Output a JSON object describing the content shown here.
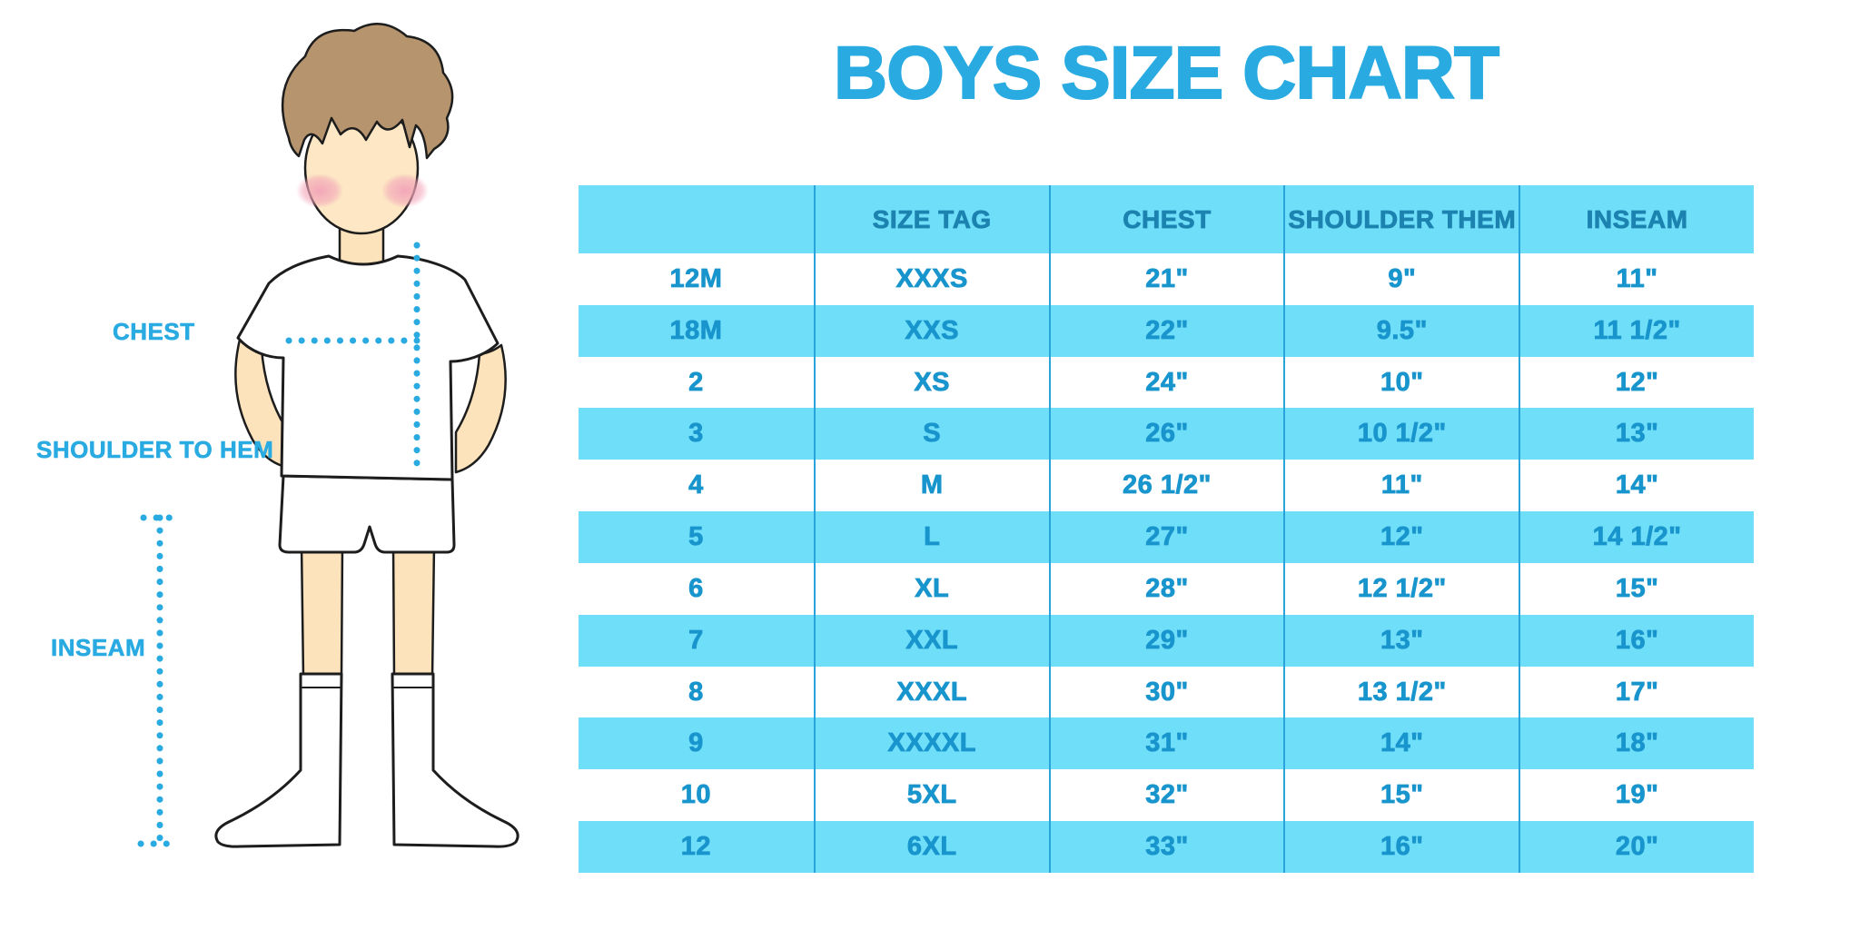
{
  "page_title": "BOYS SIZE CHART",
  "figure_labels": {
    "chest": "CHEST",
    "shoulder_to_hem": "SHOULDER TO HEM",
    "inseam": "INSEAM"
  },
  "chart_data": {
    "type": "table",
    "title": "BOYS SIZE CHART",
    "columns": [
      "",
      "SIZE TAG",
      "CHEST",
      "SHOULDER THEM",
      "INSEAM"
    ],
    "rows": [
      [
        "12M",
        "XXXS",
        "21\"",
        "9\"",
        "11\""
      ],
      [
        "18M",
        "XXS",
        "22\"",
        "9.5\"",
        "11 1/2\""
      ],
      [
        "2",
        "XS",
        "24\"",
        "10\"",
        "12\""
      ],
      [
        "3",
        "S",
        "26\"",
        "10 1/2\"",
        "13\""
      ],
      [
        "4",
        "M",
        "26 1/2\"",
        "11\"",
        "14\""
      ],
      [
        "5",
        "L",
        "27\"",
        "12\"",
        "14 1/2\""
      ],
      [
        "6",
        "XL",
        "28\"",
        "12 1/2\"",
        "15\""
      ],
      [
        "7",
        "XXL",
        "29\"",
        "13\"",
        "16\""
      ],
      [
        "8",
        "XXXL",
        "30\"",
        "13 1/2\"",
        "17\""
      ],
      [
        "9",
        "XXXXL",
        "31\"",
        "14\"",
        "18\""
      ],
      [
        "10",
        "5XL",
        "32\"",
        "15\"",
        "19\""
      ],
      [
        "12",
        "6XL",
        "33\"",
        "16\"",
        "20\""
      ]
    ]
  },
  "colors": {
    "accent_blue": "#29ABE2",
    "band_cyan": "#6FDEF8",
    "header_text": "#1C82B0",
    "cell_text": "#1995CD",
    "grid_line": "#29A3DB"
  }
}
